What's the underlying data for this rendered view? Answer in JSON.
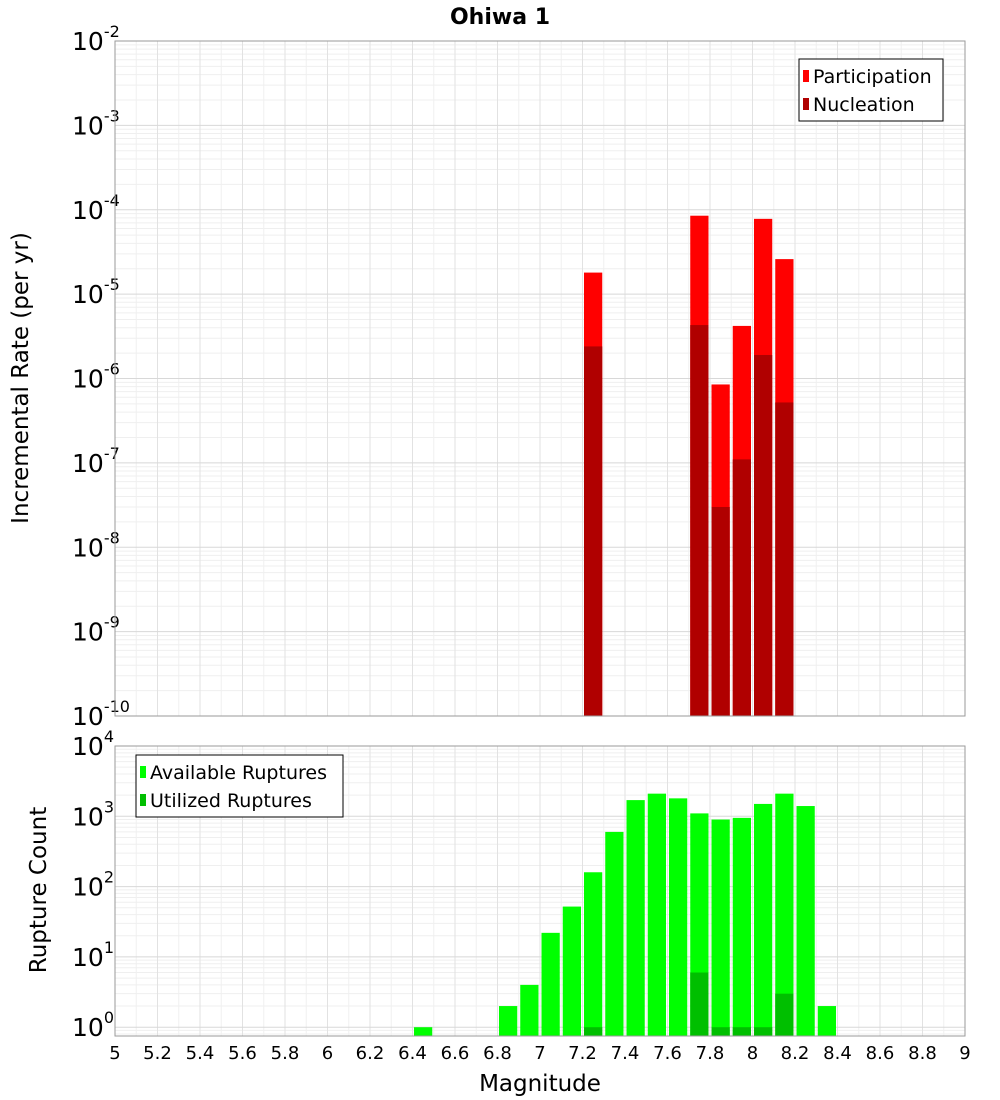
{
  "chart_data": [
    {
      "type": "bar",
      "title": "Ohiwa 1",
      "xlabel": "",
      "ylabel": "Incremental Rate (per yr)",
      "yscale": "log",
      "ylim": [
        1e-10,
        0.01
      ],
      "xlim": [
        5,
        9
      ],
      "grid": true,
      "legend": "top-right",
      "bin_width": 0.1,
      "y_tick_exponents": [
        -10,
        -9,
        -8,
        -7,
        -6,
        -5,
        -4,
        -3,
        -2
      ],
      "series": [
        {
          "name": "Participation",
          "color": "#ff0000",
          "x": [
            7.25,
            7.75,
            7.85,
            7.95,
            8.05,
            8.15
          ],
          "values": [
            1.8e-05,
            8.5e-05,
            8.5e-07,
            4.2e-06,
            7.8e-05,
            2.6e-05
          ]
        },
        {
          "name": "Nucleation",
          "color": "#b00000",
          "x": [
            7.25,
            7.75,
            7.85,
            7.95,
            8.05,
            8.15
          ],
          "values": [
            2.4e-06,
            4.3e-06,
            3e-08,
            1.1e-07,
            1.9e-06,
            5.2e-07
          ]
        }
      ]
    },
    {
      "type": "bar",
      "title": "",
      "xlabel": "Magnitude",
      "ylabel": "Rupture Count",
      "yscale": "log",
      "ylim": [
        0.75,
        10000
      ],
      "xlim": [
        5,
        9
      ],
      "grid": true,
      "legend": "top-left",
      "bin_width": 0.1,
      "x_ticks": [
        "5",
        "5.2",
        "5.4",
        "5.6",
        "5.8",
        "6",
        "6.2",
        "6.4",
        "6.6",
        "6.8",
        "7",
        "7.2",
        "7.4",
        "7.6",
        "7.8",
        "8",
        "8.2",
        "8.4",
        "8.6",
        "8.8",
        "9"
      ],
      "y_tick_exponents": [
        0,
        1,
        2,
        3,
        4
      ],
      "series": [
        {
          "name": "Available Ruptures",
          "color": "#00ff00",
          "x": [
            6.45,
            6.85,
            6.95,
            7.05,
            7.15,
            7.25,
            7.35,
            7.45,
            7.55,
            7.65,
            7.75,
            7.85,
            7.95,
            8.05,
            8.15,
            8.25,
            8.35
          ],
          "values": [
            1,
            2,
            4,
            22,
            52,
            160,
            600,
            1700,
            2100,
            1800,
            1100,
            900,
            950,
            1500,
            2100,
            1400,
            2
          ]
        },
        {
          "name": "Utilized Ruptures",
          "color": "#00bf00",
          "x": [
            7.25,
            7.75,
            7.85,
            7.95,
            8.05,
            8.15
          ],
          "values": [
            1,
            6,
            1,
            1,
            1,
            3
          ]
        }
      ]
    }
  ]
}
